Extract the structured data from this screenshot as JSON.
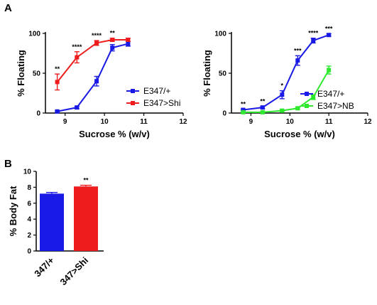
{
  "panels": [
    "A",
    "B"
  ],
  "colors": {
    "blue": "#1a1ae6",
    "red": "#ee1c1c",
    "green": "#2ee82e",
    "axis": "#000000"
  },
  "chart_data": [
    {
      "type": "line",
      "xlabel": "Sucrose % (w/v)",
      "ylabel": "% Floating",
      "xlim": [
        8.5,
        12
      ],
      "ylim": [
        0,
        100
      ],
      "xticks": [
        9,
        10,
        11,
        12
      ],
      "yticks": [
        0,
        50,
        100
      ],
      "legend": "bottom-right",
      "series": [
        {
          "name": "E347/+",
          "color": "#1a1ae6",
          "x": [
            8.8,
            9.3,
            9.8,
            10.2,
            10.6
          ],
          "y": [
            2,
            7,
            40,
            82,
            87
          ],
          "err": [
            1,
            1.5,
            6,
            4,
            3
          ]
        },
        {
          "name": "E347>Shi",
          "color": "#ee1c1c",
          "x": [
            8.8,
            9.3,
            9.8,
            10.2,
            10.6
          ],
          "y": [
            39,
            70,
            88,
            92,
            92
          ],
          "err": [
            10,
            7,
            3,
            2,
            2
          ]
        }
      ],
      "annotations": [
        {
          "x": 8.8,
          "text": "**"
        },
        {
          "x": 9.3,
          "text": "****"
        },
        {
          "x": 9.8,
          "text": "****"
        },
        {
          "x": 10.2,
          "text": "**"
        }
      ]
    },
    {
      "type": "line",
      "xlabel": "Sucrose % (w/v)",
      "ylabel": "% Floating",
      "xlim": [
        8.5,
        12
      ],
      "ylim": [
        0,
        100
      ],
      "xticks": [
        9,
        10,
        11,
        12
      ],
      "yticks": [
        0,
        50,
        100
      ],
      "legend": "bottom-right",
      "series": [
        {
          "name": "E347/+",
          "color": "#1a1ae6",
          "x": [
            8.8,
            9.3,
            9.8,
            10.2,
            10.6,
            11.0
          ],
          "y": [
            4,
            7,
            23,
            66,
            91,
            98
          ],
          "err": [
            1,
            1.5,
            5,
            6,
            3,
            1.5
          ]
        },
        {
          "name": "E347>NB",
          "color": "#2ee82e",
          "x": [
            8.8,
            9.3,
            9.8,
            10.2,
            10.6,
            11.0
          ],
          "y": [
            1,
            1,
            3,
            6,
            20,
            54
          ],
          "err": [
            0.5,
            0.5,
            1,
            1,
            3,
            5
          ]
        }
      ],
      "annotations": [
        {
          "x": 8.8,
          "text": "**"
        },
        {
          "x": 9.3,
          "text": "**"
        },
        {
          "x": 9.8,
          "text": "*"
        },
        {
          "x": 10.2,
          "text": "***"
        },
        {
          "x": 10.6,
          "text": "****"
        },
        {
          "x": 11.0,
          "text": "***"
        }
      ]
    },
    {
      "type": "bar",
      "categories": [
        "347/+",
        "347>Shi"
      ],
      "ylabel": "% Body Fat",
      "ylim": [
        0,
        10
      ],
      "yticks": [
        0,
        2,
        4,
        6,
        8,
        10
      ],
      "series": [
        {
          "values": [
            7.2,
            8.1
          ],
          "err": [
            0.15,
            0.15
          ]
        }
      ],
      "bar_colors": [
        "#1a1ae6",
        "#ee1c1c"
      ],
      "annotations": [
        {
          "category": "347>Shi",
          "text": "**"
        }
      ]
    }
  ]
}
